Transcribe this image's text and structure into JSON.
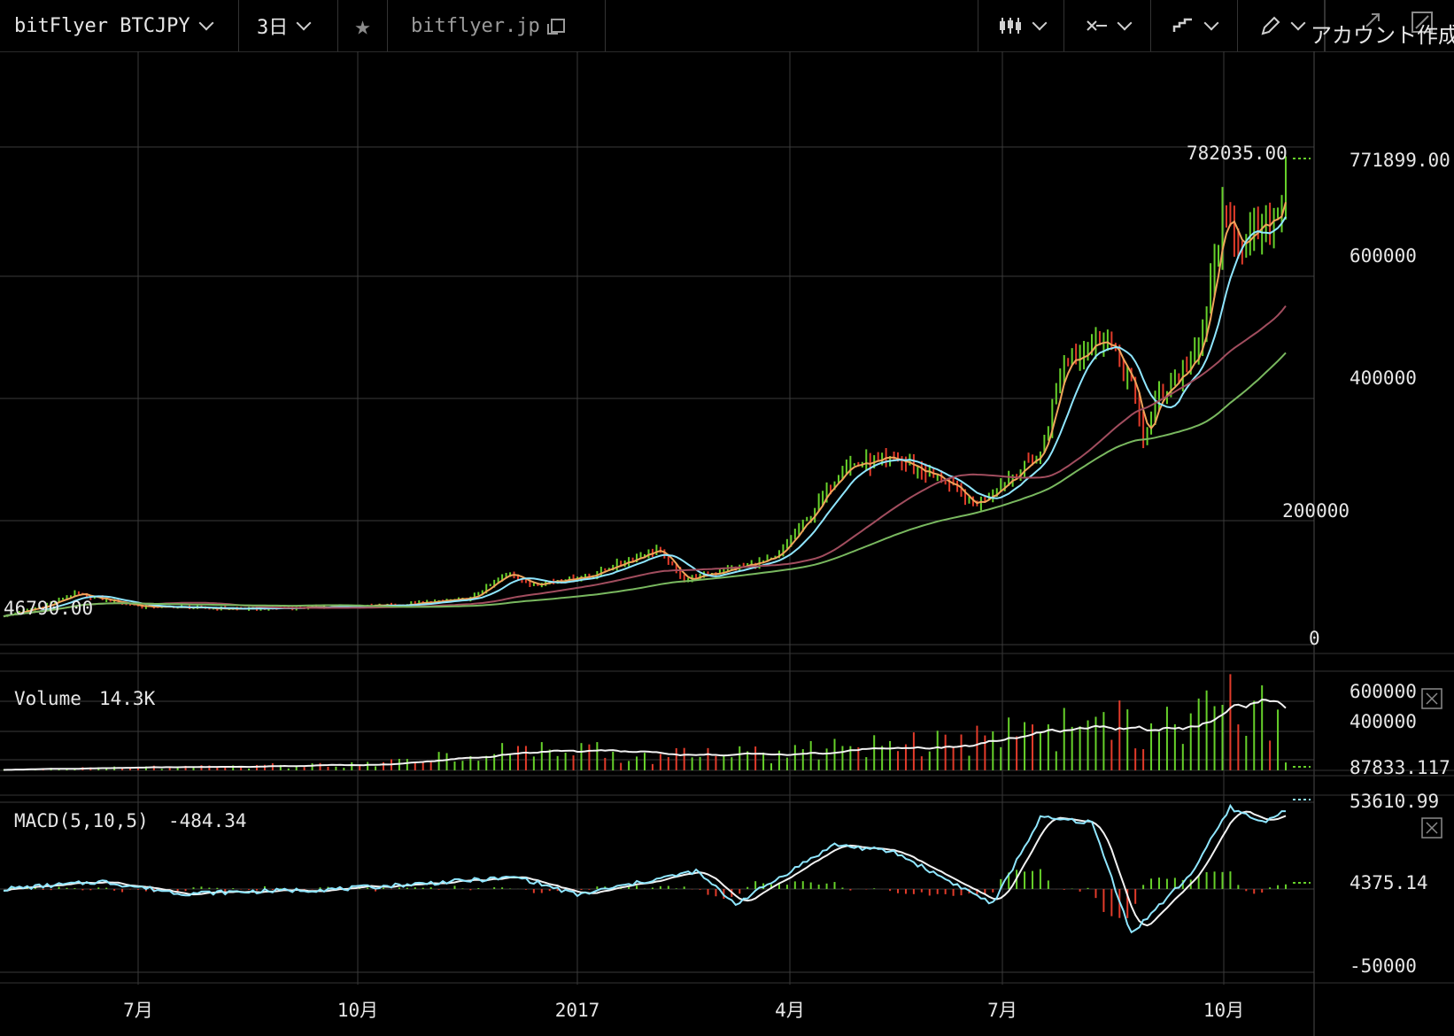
{
  "toolbar": {
    "symbol": "bitFlyer BTCJPY",
    "interval": "3日",
    "host": "bitflyer.jp",
    "account": "アカウント作成",
    "icons": [
      "candles-icon",
      "indicators-icon",
      "compare-icon",
      "draw-icon",
      "popout-icon",
      "fullscreen-icon"
    ]
  },
  "colors": {
    "up": "#66d02a",
    "down": "#e23b2a",
    "ma_fast": "#f0a45a",
    "ma_mid": "#8fe6ff",
    "ma_slow": "#a14d5e",
    "ma_long": "#79b85f",
    "volume_ma": "#f2f2f2",
    "macd_line": "#8fe6ff",
    "signal_line": "#f2f2f2",
    "grid": "#3a3a3a"
  },
  "price_panel": {
    "y_ticks": [
      "0",
      "200000",
      "400000",
      "600000"
    ],
    "last_price": "771899.00",
    "high_label": "782035.00",
    "low_label": "46790.00"
  },
  "volume_panel": {
    "title": "Volume",
    "value": "14.3K",
    "y_ticks": [
      "600000",
      "400000"
    ],
    "last_value": "87833.117"
  },
  "macd_panel": {
    "title": "MACD(5,10,5)",
    "value": "-484.34",
    "y_ticks": [
      "-50000"
    ],
    "top_value": "53610.99",
    "last_value": "4375.14"
  },
  "time_axis": [
    "7月",
    "10月",
    "2017",
    "4月",
    "7月",
    "10月"
  ],
  "chart_data": {
    "type": "line",
    "price_keypoints": [
      [
        0,
        46790
      ],
      [
        10,
        62000
      ],
      [
        18,
        82000
      ],
      [
        35,
        62000
      ],
      [
        60,
        58000
      ],
      [
        88,
        62000
      ],
      [
        100,
        64000
      ],
      [
        118,
        75000
      ],
      [
        128,
        118000
      ],
      [
        133,
        98000
      ],
      [
        148,
        112000
      ],
      [
        165,
        155000
      ],
      [
        172,
        105000
      ],
      [
        195,
        140000
      ],
      [
        205,
        220000
      ],
      [
        212,
        290000
      ],
      [
        226,
        300000
      ],
      [
        238,
        265000
      ],
      [
        245,
        225000
      ],
      [
        252,
        260000
      ],
      [
        262,
        310000
      ],
      [
        268,
        460000
      ],
      [
        278,
        500000
      ],
      [
        285,
        425000
      ],
      [
        288,
        330000
      ],
      [
        292,
        405000
      ],
      [
        302,
        470000
      ],
      [
        308,
        690000
      ],
      [
        314,
        650000
      ],
      [
        322,
        700000
      ],
      [
        324,
        771899
      ]
    ],
    "volume_keypoints": [
      [
        0,
        8000
      ],
      [
        40,
        25000
      ],
      [
        90,
        45000
      ],
      [
        130,
        180000
      ],
      [
        160,
        120000
      ],
      [
        200,
        140000
      ],
      [
        240,
        210000
      ],
      [
        280,
        360000
      ],
      [
        300,
        320000
      ],
      [
        312,
        700000
      ],
      [
        322,
        520000
      ],
      [
        324,
        87833
      ]
    ],
    "macd_keypoints": [
      [
        0,
        0
      ],
      [
        25,
        5000
      ],
      [
        45,
        -3000
      ],
      [
        85,
        0
      ],
      [
        130,
        8000
      ],
      [
        145,
        -4000
      ],
      [
        175,
        12000
      ],
      [
        185,
        -10000
      ],
      [
        210,
        30000
      ],
      [
        225,
        25000
      ],
      [
        250,
        -10000
      ],
      [
        262,
        48000
      ],
      [
        275,
        45000
      ],
      [
        285,
        -30000
      ],
      [
        300,
        10000
      ],
      [
        310,
        55000
      ],
      [
        318,
        45000
      ],
      [
        324,
        53610
      ]
    ]
  }
}
